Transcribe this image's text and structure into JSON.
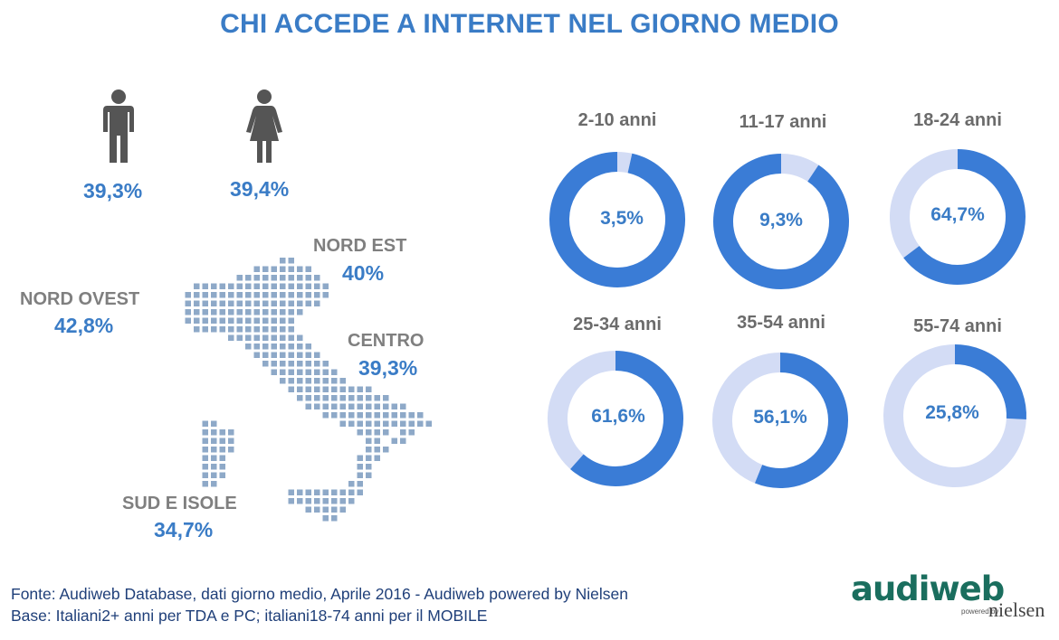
{
  "title": "CHI ACCEDE A INTERNET NEL GIORNO MEDIO",
  "gender": {
    "male": {
      "value": "39,3%",
      "icon": "male-person-icon"
    },
    "female": {
      "value": "39,4%",
      "icon": "female-person-icon"
    }
  },
  "regions": {
    "nord_ovest": {
      "name": "NORD OVEST",
      "value": "42,8%"
    },
    "nord_est": {
      "name": "NORD EST",
      "value": "40%"
    },
    "centro": {
      "name": "CENTRO",
      "value": "39,3%"
    },
    "sud": {
      "name": "SUD E ISOLE",
      "value": "34,7%"
    }
  },
  "chart_data": {
    "type": "pie",
    "variant": "donut",
    "categories": [
      "2-10 anni",
      "11-17 anni",
      "18-24 anni",
      "25-34 anni",
      "35-54 anni",
      "55-74 anni"
    ],
    "values": [
      3.5,
      9.3,
      64.7,
      61.6,
      56.1,
      25.8
    ],
    "value_labels": [
      "3,5%",
      "9,3%",
      "64,7%",
      "61,6%",
      "56,1%",
      "25,8%"
    ],
    "colors": {
      "filled": "#3a7cd6",
      "remainder": "#d3dcf5"
    }
  },
  "footer": {
    "source": "Fonte: Audiweb Database, dati giorno medio, Aprile 2016 - Audiweb powered by Nielsen",
    "base": "Base: Italiani2+ anni per TDA e PC; italiani18-74 anni per il MOBILE"
  },
  "logo": {
    "brand": "audiweb",
    "powered": "powered by",
    "partner": "nielsen"
  },
  "colors": {
    "accent": "#3a7cc6",
    "grey": "#7f7f7f",
    "map_dots": "#8ea9c8",
    "footer": "#1f3f79"
  }
}
